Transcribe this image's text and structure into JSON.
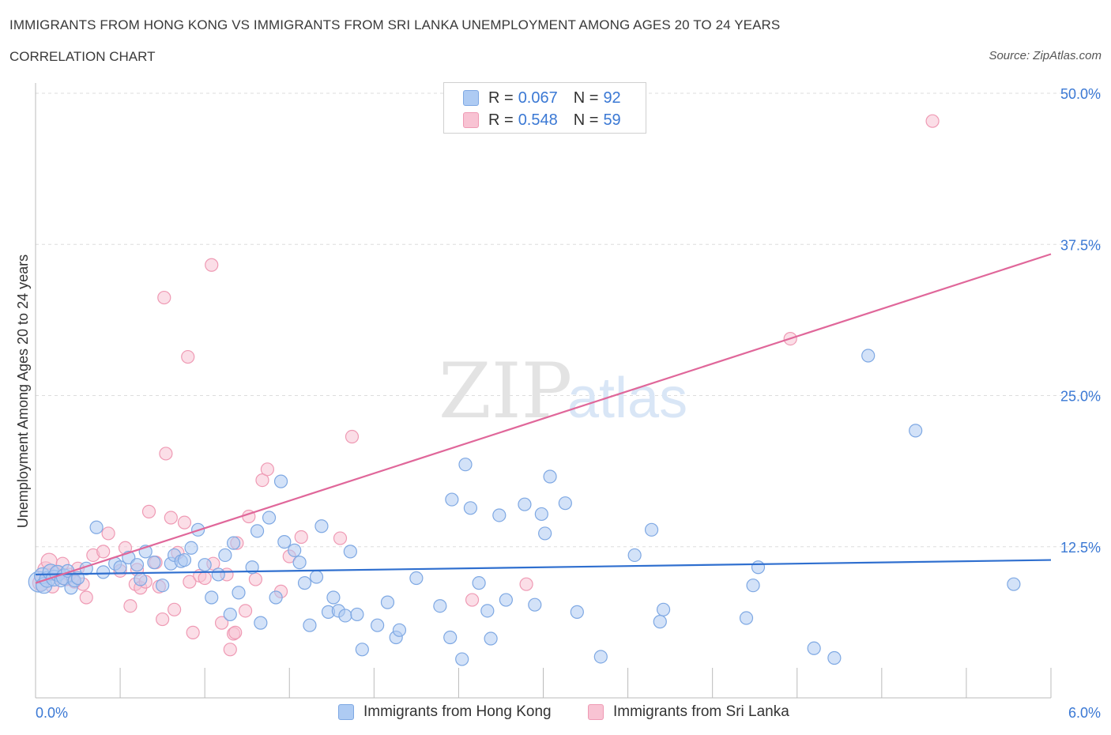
{
  "header": {
    "title": "IMMIGRANTS FROM HONG KONG VS IMMIGRANTS FROM SRI LANKA UNEMPLOYMENT AMONG AGES 20 TO 24 YEARS",
    "subtitle": "CORRELATION CHART",
    "source": "Source: ZipAtlas.com"
  },
  "watermark": {
    "zip": "ZIP",
    "atlas": "atlas"
  },
  "legend": {
    "series": [
      {
        "name": "Immigrants from Hong Kong",
        "r_label": "R =",
        "r_value": "0.067",
        "n_label": "N =",
        "n_value": "92"
      },
      {
        "name": "Immigrants from Sri Lanka",
        "r_label": "R =",
        "r_value": "0.548",
        "n_label": "N =",
        "n_value": "59"
      }
    ]
  },
  "colors": {
    "hk_fill": "#aecbf3",
    "hk_stroke": "#7ea8e3",
    "hk_line": "#2f6fcf",
    "sl_fill": "#f8c3d3",
    "sl_stroke": "#ef9ab4",
    "sl_line": "#e0679a",
    "axis_label": "#3a78d4",
    "grid": "#dddddd",
    "axis": "#bbbbbb"
  },
  "chart_data": {
    "type": "scatter",
    "title": "IMMIGRANTS FROM HONG KONG VS IMMIGRANTS FROM SRI LANKA UNEMPLOYMENT AMONG AGES 20 TO 24 YEARS",
    "xlabel": "",
    "ylabel": "Unemployment Among Ages 20 to 24 years",
    "xlim": [
      0,
      6
    ],
    "ylim": [
      0,
      50
    ],
    "x_tick_labels": [
      {
        "value": 0,
        "label": "0.0%"
      },
      {
        "value": 6,
        "label": "6.0%"
      }
    ],
    "y_tick_labels": [
      {
        "value": 12.5,
        "label": "12.5%"
      },
      {
        "value": 25,
        "label": "25.0%"
      },
      {
        "value": 37.5,
        "label": "37.5%"
      },
      {
        "value": 50,
        "label": "50.0%"
      }
    ],
    "series": [
      {
        "name": "Immigrants from Hong Kong",
        "color_key": "hk",
        "trendline": [
          [
            0,
            10.2
          ],
          [
            6,
            11.4
          ]
        ],
        "points": [
          [
            0.02,
            9.6,
            3
          ],
          [
            0.04,
            10.1,
            2
          ],
          [
            0.05,
            9.3,
            2
          ],
          [
            0.07,
            9.8,
            2
          ],
          [
            0.09,
            10.4,
            2
          ],
          [
            0.11,
            9.9,
            2
          ],
          [
            0.13,
            10.3,
            2
          ],
          [
            0.15,
            9.7,
            1
          ],
          [
            0.17,
            10.0,
            2
          ],
          [
            0.19,
            10.5,
            1
          ],
          [
            0.21,
            9.1,
            1
          ],
          [
            0.23,
            9.7,
            1
          ],
          [
            0.25,
            9.9,
            1
          ],
          [
            0.3,
            10.7,
            1
          ],
          [
            0.36,
            14.1,
            1
          ],
          [
            0.4,
            10.4,
            1
          ],
          [
            0.47,
            11.1,
            1
          ],
          [
            0.5,
            10.8,
            1
          ],
          [
            0.55,
            11.6,
            1
          ],
          [
            0.6,
            11.0,
            1
          ],
          [
            0.62,
            9.8,
            1
          ],
          [
            0.65,
            12.1,
            1
          ],
          [
            0.7,
            11.2,
            1
          ],
          [
            0.75,
            9.3,
            1
          ],
          [
            0.8,
            11.1,
            1
          ],
          [
            0.82,
            11.8,
            1
          ],
          [
            0.86,
            11.3,
            1
          ],
          [
            0.88,
            11.4,
            1
          ],
          [
            0.92,
            12.4,
            1
          ],
          [
            0.96,
            13.9,
            1
          ],
          [
            1.0,
            11.0,
            1
          ],
          [
            1.04,
            8.3,
            1
          ],
          [
            1.08,
            10.2,
            1
          ],
          [
            1.12,
            11.8,
            1
          ],
          [
            1.15,
            6.9,
            1
          ],
          [
            1.17,
            12.8,
            1
          ],
          [
            1.2,
            8.7,
            1
          ],
          [
            1.28,
            10.8,
            1
          ],
          [
            1.31,
            13.8,
            1
          ],
          [
            1.33,
            6.2,
            1
          ],
          [
            1.38,
            14.9,
            1
          ],
          [
            1.42,
            8.3,
            1
          ],
          [
            1.45,
            17.9,
            1
          ],
          [
            1.47,
            12.9,
            1
          ],
          [
            1.53,
            12.2,
            1
          ],
          [
            1.56,
            11.2,
            1
          ],
          [
            1.59,
            9.5,
            1
          ],
          [
            1.62,
            6.0,
            1
          ],
          [
            1.66,
            10.0,
            1
          ],
          [
            1.69,
            14.2,
            1
          ],
          [
            1.73,
            7.1,
            1
          ],
          [
            1.76,
            8.3,
            1
          ],
          [
            1.79,
            7.2,
            1
          ],
          [
            1.83,
            6.8,
            1
          ],
          [
            1.86,
            12.1,
            1
          ],
          [
            1.9,
            6.9,
            1
          ],
          [
            1.93,
            4.0,
            1
          ],
          [
            2.02,
            6.0,
            1
          ],
          [
            2.08,
            7.9,
            1
          ],
          [
            2.13,
            5.0,
            1
          ],
          [
            2.15,
            5.6,
            1
          ],
          [
            2.25,
            9.9,
            1
          ],
          [
            2.39,
            7.6,
            1
          ],
          [
            2.45,
            5.0,
            1
          ],
          [
            2.46,
            16.4,
            1
          ],
          [
            2.52,
            3.2,
            1
          ],
          [
            2.54,
            19.3,
            1
          ],
          [
            2.57,
            15.7,
            1
          ],
          [
            2.62,
            9.5,
            1
          ],
          [
            2.67,
            7.2,
            1
          ],
          [
            2.69,
            4.9,
            1
          ],
          [
            2.74,
            15.1,
            1
          ],
          [
            2.78,
            8.1,
            1
          ],
          [
            2.89,
            16.0,
            1
          ],
          [
            2.95,
            7.7,
            1
          ],
          [
            2.99,
            15.2,
            1
          ],
          [
            3.01,
            13.6,
            1
          ],
          [
            3.04,
            18.3,
            1
          ],
          [
            3.13,
            16.1,
            1
          ],
          [
            3.2,
            7.1,
            1
          ],
          [
            3.34,
            3.4,
            1
          ],
          [
            3.54,
            11.8,
            1
          ],
          [
            3.64,
            13.9,
            1
          ],
          [
            3.69,
            6.3,
            1
          ],
          [
            3.71,
            7.3,
            1
          ],
          [
            4.2,
            6.6,
            1
          ],
          [
            4.24,
            9.3,
            1
          ],
          [
            4.27,
            10.8,
            1
          ],
          [
            4.6,
            4.1,
            1
          ],
          [
            4.72,
            3.3,
            1
          ],
          [
            4.92,
            28.3,
            1
          ],
          [
            5.2,
            22.1,
            1
          ],
          [
            5.78,
            9.4,
            1
          ]
        ]
      },
      {
        "name": "Immigrants from Sri Lanka",
        "color_key": "sl",
        "trendline": [
          [
            0,
            9.5
          ],
          [
            6,
            36.7
          ]
        ],
        "points": [
          [
            0.03,
            9.5,
            2
          ],
          [
            0.06,
            10.6,
            2
          ],
          [
            0.08,
            11.3,
            2
          ],
          [
            0.1,
            9.2,
            1
          ],
          [
            0.13,
            10.4,
            1
          ],
          [
            0.16,
            11.1,
            1
          ],
          [
            0.18,
            9.8,
            1
          ],
          [
            0.2,
            10.2,
            1
          ],
          [
            0.25,
            10.7,
            1
          ],
          [
            0.28,
            9.4,
            1
          ],
          [
            0.3,
            8.3,
            1
          ],
          [
            0.34,
            11.8,
            1
          ],
          [
            0.4,
            12.1,
            1
          ],
          [
            0.43,
            13.6,
            1
          ],
          [
            0.5,
            10.5,
            1
          ],
          [
            0.53,
            12.4,
            1
          ],
          [
            0.56,
            7.6,
            1
          ],
          [
            0.59,
            9.4,
            1
          ],
          [
            0.6,
            10.6,
            1
          ],
          [
            0.62,
            9.1,
            1
          ],
          [
            0.65,
            9.6,
            1
          ],
          [
            0.67,
            15.4,
            1
          ],
          [
            0.71,
            11.2,
            1
          ],
          [
            0.73,
            9.2,
            1
          ],
          [
            0.75,
            6.5,
            1
          ],
          [
            0.77,
            20.2,
            1
          ],
          [
            0.8,
            14.9,
            1
          ],
          [
            0.82,
            7.3,
            1
          ],
          [
            0.84,
            12.0,
            1
          ],
          [
            0.88,
            14.5,
            1
          ],
          [
            0.91,
            9.6,
            1
          ],
          [
            0.93,
            5.4,
            1
          ],
          [
            0.97,
            10.1,
            1
          ],
          [
            1.0,
            9.9,
            1
          ],
          [
            1.05,
            11.1,
            1
          ],
          [
            1.1,
            6.2,
            1
          ],
          [
            1.13,
            10.2,
            1
          ],
          [
            1.17,
            5.3,
            1
          ],
          [
            1.19,
            12.8,
            1
          ],
          [
            1.24,
            7.2,
            1
          ],
          [
            1.26,
            15.0,
            1
          ],
          [
            1.3,
            9.8,
            1
          ],
          [
            1.34,
            18.0,
            1
          ],
          [
            1.37,
            18.9,
            1
          ],
          [
            1.45,
            8.8,
            1
          ],
          [
            1.5,
            11.7,
            1
          ],
          [
            1.57,
            13.3,
            1
          ],
          [
            1.8,
            13.2,
            1
          ],
          [
            1.87,
            21.6,
            1
          ],
          [
            2.58,
            8.1,
            1
          ],
          [
            2.9,
            9.4,
            1
          ],
          [
            4.46,
            29.7,
            1
          ],
          [
            5.3,
            47.7,
            1
          ],
          [
            0.76,
            33.1,
            1
          ],
          [
            0.9,
            28.2,
            1
          ],
          [
            1.04,
            35.8,
            1
          ],
          [
            1.15,
            4.0,
            1
          ],
          [
            1.18,
            5.4,
            1
          ],
          [
            0.23,
            9.6,
            1
          ]
        ]
      }
    ]
  }
}
